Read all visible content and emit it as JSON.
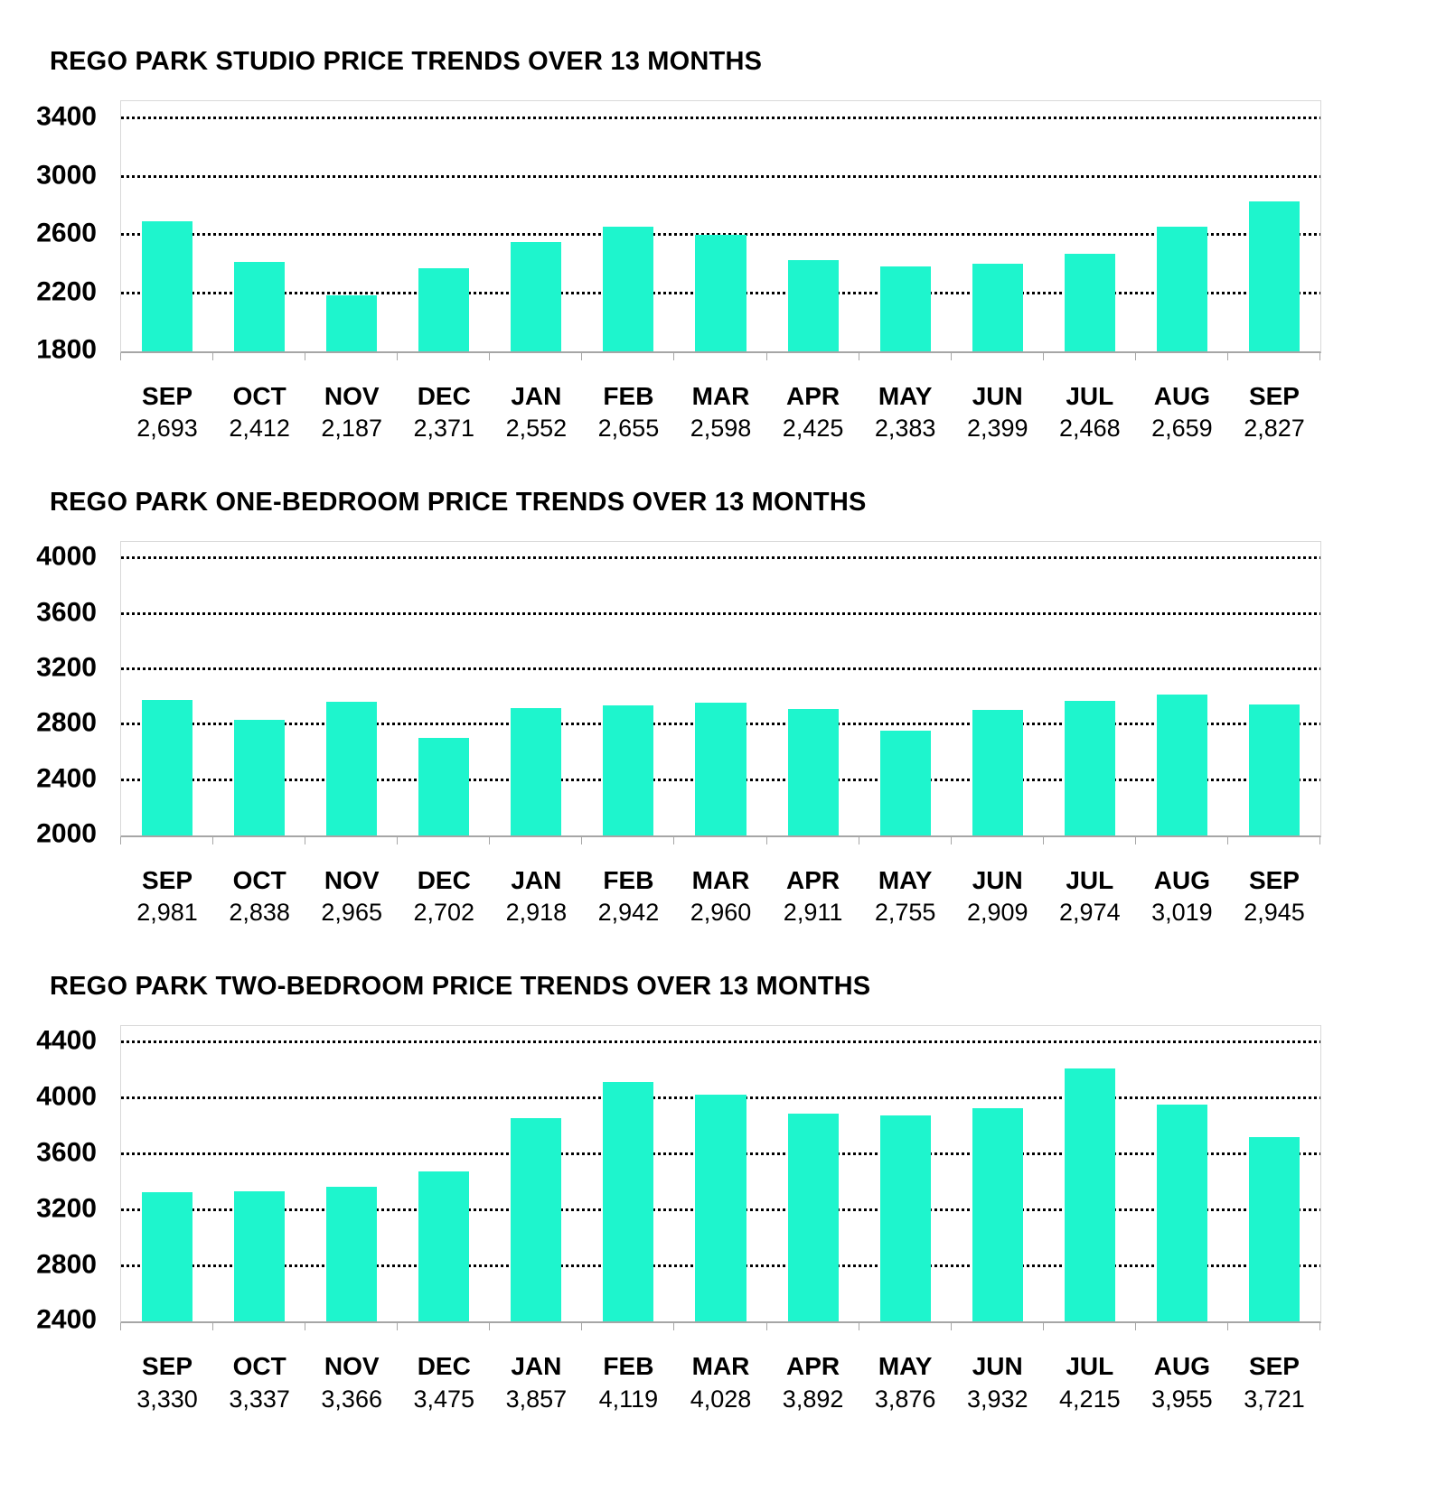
{
  "page": {
    "background": "#ffffff"
  },
  "colors": {
    "bar": "#1ef5cd",
    "axis_line": "#a6a6a6",
    "plot_border": "#d9d9d9",
    "gridline": "#000000",
    "text": "#000000"
  },
  "chart_data": [
    {
      "type": "bar",
      "title": "REGO PARK STUDIO PRICE TRENDS OVER 13 MONTHS",
      "categories": [
        "SEP",
        "OCT",
        "NOV",
        "DEC",
        "JAN",
        "FEB",
        "MAR",
        "APR",
        "MAY",
        "JUN",
        "JUL",
        "AUG",
        "SEP"
      ],
      "values": [
        2693,
        2412,
        2187,
        2371,
        2552,
        2655,
        2598,
        2425,
        2383,
        2399,
        2468,
        2659,
        2827
      ],
      "value_labels": [
        "2,693",
        "2,412",
        "2,187",
        "2,371",
        "2,552",
        "2,655",
        "2,598",
        "2,425",
        "2,383",
        "2,399",
        "2,468",
        "2,659",
        "2,827"
      ],
      "xlabel": "",
      "ylabel": "",
      "ylim": [
        1800,
        3400
      ],
      "ytick_step": 400,
      "yticks": [
        1800,
        2200,
        2600,
        3000,
        3400
      ],
      "grid": "horizontal-dotted",
      "legend": "none",
      "bar_color": "#1ef5cd"
    },
    {
      "type": "bar",
      "title": "REGO PARK ONE-BEDROOM PRICE TRENDS OVER 13 MONTHS",
      "categories": [
        "SEP",
        "OCT",
        "NOV",
        "DEC",
        "JAN",
        "FEB",
        "MAR",
        "APR",
        "MAY",
        "JUN",
        "JUL",
        "AUG",
        "SEP"
      ],
      "values": [
        2981,
        2838,
        2965,
        2702,
        2918,
        2942,
        2960,
        2911,
        2755,
        2909,
        2974,
        3019,
        2945
      ],
      "value_labels": [
        "2,981",
        "2,838",
        "2,965",
        "2,702",
        "2,918",
        "2,942",
        "2,960",
        "2,911",
        "2,755",
        "2,909",
        "2,974",
        "3,019",
        "2,945"
      ],
      "xlabel": "",
      "ylabel": "",
      "ylim": [
        2000,
        4000
      ],
      "ytick_step": 400,
      "yticks": [
        2000,
        2400,
        2800,
        3200,
        3600,
        4000
      ],
      "grid": "horizontal-dotted",
      "legend": "none",
      "bar_color": "#1ef5cd"
    },
    {
      "type": "bar",
      "title": "REGO PARK TWO-BEDROOM PRICE TRENDS OVER 13 MONTHS",
      "categories": [
        "SEP",
        "OCT",
        "NOV",
        "DEC",
        "JAN",
        "FEB",
        "MAR",
        "APR",
        "MAY",
        "JUN",
        "JUL",
        "AUG",
        "SEP"
      ],
      "values": [
        3330,
        3337,
        3366,
        3475,
        3857,
        4119,
        4028,
        3892,
        3876,
        3932,
        4215,
        3955,
        3721
      ],
      "value_labels": [
        "3,330",
        "3,337",
        "3,366",
        "3,475",
        "3,857",
        "4,119",
        "4,028",
        "3,892",
        "3,876",
        "3,932",
        "4,215",
        "3,955",
        "3,721"
      ],
      "xlabel": "",
      "ylabel": "",
      "ylim": [
        2400,
        4400
      ],
      "ytick_step": 400,
      "yticks": [
        2400,
        2800,
        3200,
        3600,
        4000,
        4400
      ],
      "grid": "horizontal-dotted",
      "legend": "none",
      "bar_color": "#1ef5cd"
    }
  ]
}
